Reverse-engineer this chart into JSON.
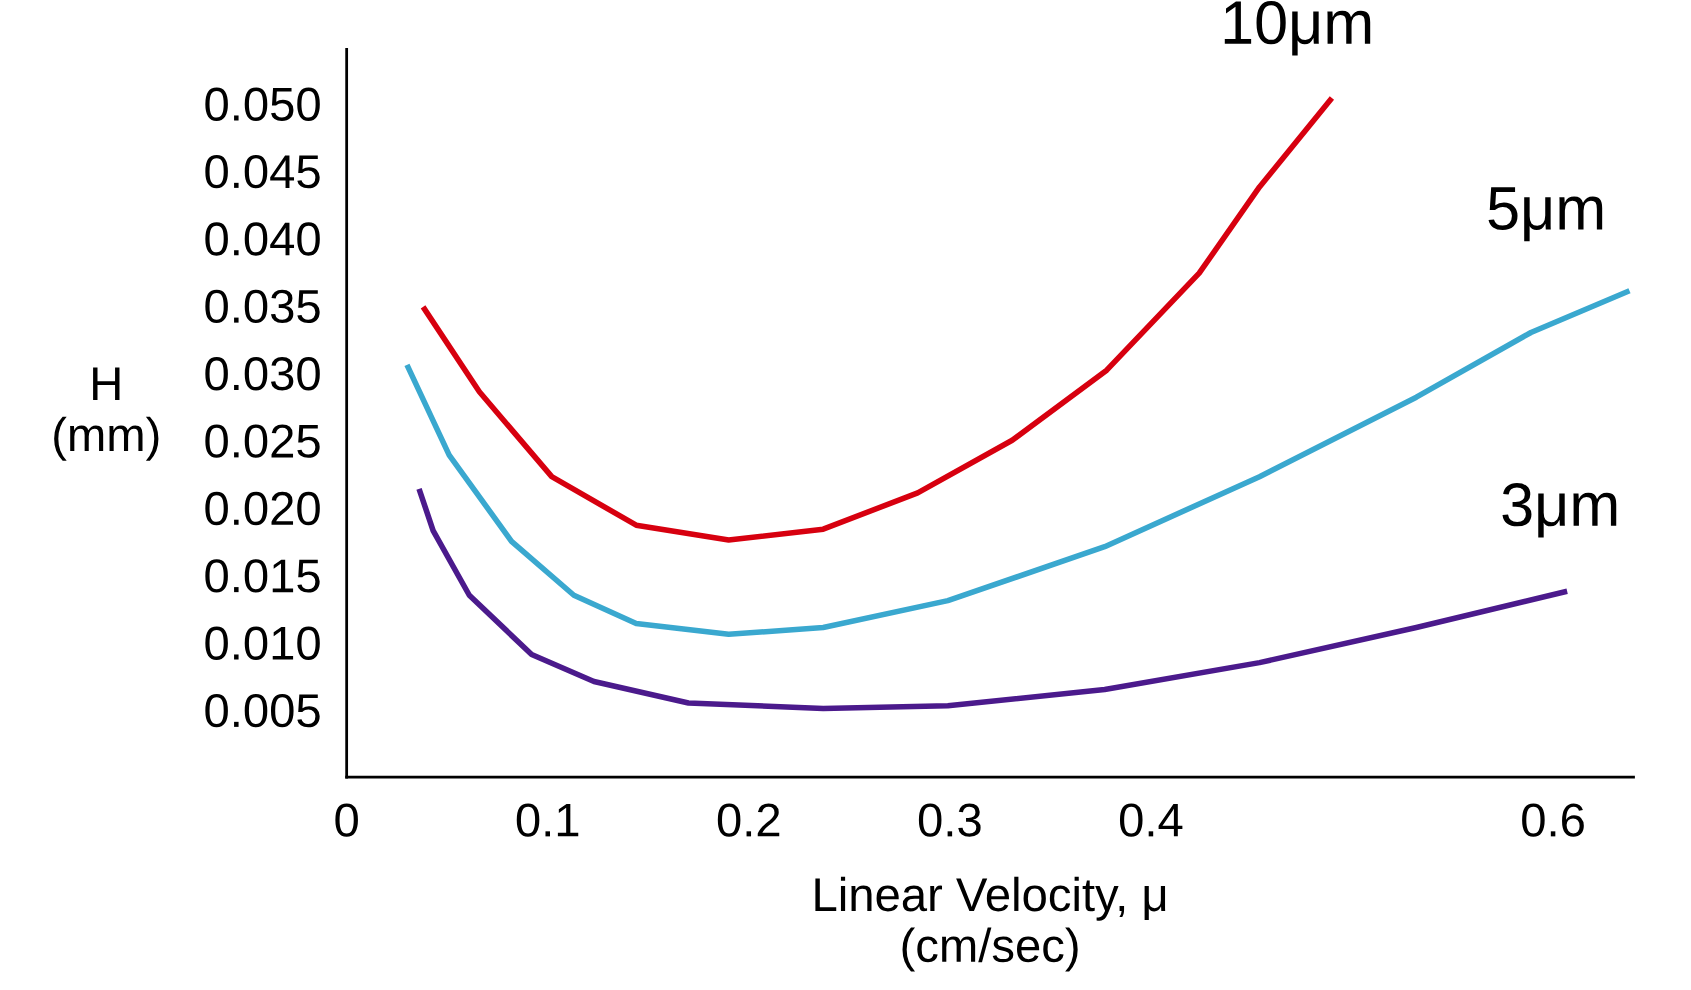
{
  "chart_data": {
    "type": "line",
    "xlabel": "Linear Velocity, μ\n(cm/sec)",
    "ylabel": "H\n(mm)",
    "xlim": [
      0,
      0.64
    ],
    "ylim": [
      0,
      0.054
    ],
    "xticks": [
      0,
      0.1,
      0.2,
      0.3,
      0.4,
      0.6
    ],
    "yticks": [
      {
        "value": 0.005,
        "label": "0.005"
      },
      {
        "value": 0.01,
        "label": "0.010"
      },
      {
        "value": 0.015,
        "label": "0.015"
      },
      {
        "value": 0.02,
        "label": "0.020"
      },
      {
        "value": 0.025,
        "label": "0.025"
      },
      {
        "value": 0.03,
        "label": "0.030"
      },
      {
        "value": 0.035,
        "label": "0.035"
      },
      {
        "value": 0.04,
        "label": "0.040"
      },
      {
        "value": 0.045,
        "label": "0.045"
      },
      {
        "value": 0.05,
        "label": "0.050"
      }
    ],
    "grid": false,
    "marker": "none",
    "line_style": "solid",
    "series": [
      {
        "name": "10μm",
        "color": "#d7000f",
        "x": [
          0.038,
          0.066,
          0.102,
          0.144,
          0.19,
          0.237,
          0.284,
          0.331,
          0.378,
          0.424,
          0.454,
          0.49
        ],
        "values": [
          0.0349,
          0.0286,
          0.0223,
          0.0187,
          0.0176,
          0.0184,
          0.0211,
          0.025,
          0.0302,
          0.0374,
          0.0438,
          0.0504
        ]
      },
      {
        "name": "5μm",
        "color": "#3aa8cf",
        "x": [
          0.03,
          0.051,
          0.082,
          0.113,
          0.144,
          0.19,
          0.237,
          0.299,
          0.377,
          0.454,
          0.532,
          0.589,
          0.638
        ],
        "values": [
          0.0306,
          0.0239,
          0.0175,
          0.0135,
          0.0114,
          0.0106,
          0.0111,
          0.0131,
          0.0171,
          0.0223,
          0.0282,
          0.033,
          0.0361
        ]
      },
      {
        "name": "3μm",
        "color": "#4b1a8c",
        "x": [
          0.036,
          0.043,
          0.061,
          0.092,
          0.123,
          0.17,
          0.237,
          0.299,
          0.377,
          0.454,
          0.532,
          0.607
        ],
        "values": [
          0.0214,
          0.0183,
          0.0135,
          0.0091,
          0.0071,
          0.0055,
          0.0051,
          0.0053,
          0.0065,
          0.0085,
          0.0111,
          0.0138
        ]
      }
    ]
  }
}
